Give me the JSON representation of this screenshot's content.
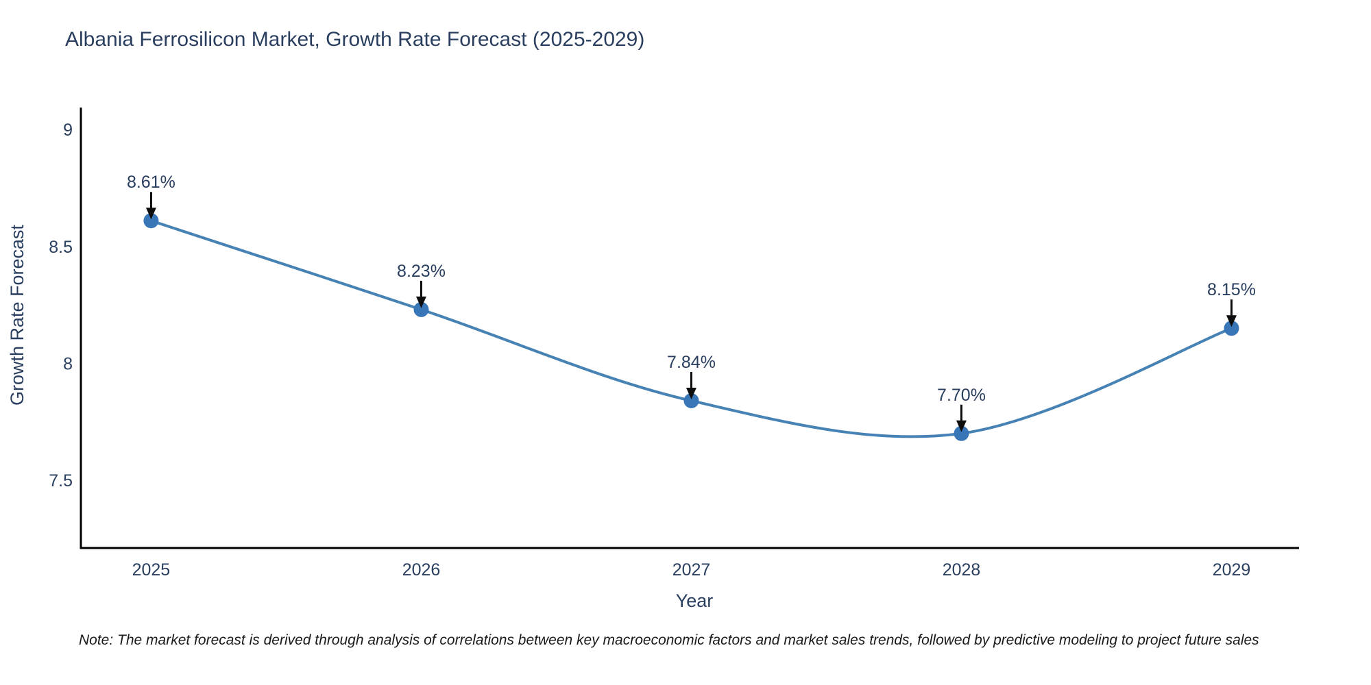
{
  "title": "Albania Ferrosilicon Market, Growth Rate Forecast (2025-2029)",
  "note": "Note: The market forecast is derived through analysis of correlations between key macroeconomic factors and market sales trends, followed by predictive modeling to project future sales",
  "chart_data": {
    "type": "line",
    "title": "Albania Ferrosilicon Market, Growth Rate Forecast (2025-2029)",
    "x": [
      2025,
      2026,
      2027,
      2028,
      2029
    ],
    "xtick_labels": [
      "2025",
      "2026",
      "2027",
      "2028",
      "2029"
    ],
    "series": [
      {
        "name": "Growth Rate Forecast",
        "values": [
          8.61,
          8.23,
          7.84,
          7.7,
          8.15
        ]
      }
    ],
    "data_labels": [
      "8.61%",
      "8.23%",
      "7.84%",
      "7.70%",
      "8.15%"
    ],
    "xlabel": "Year",
    "ylabel": "Growth Rate Forecast",
    "ytick_labels": [
      "7.5",
      "8",
      "8.5",
      "9"
    ],
    "ytick_values": [
      7.5,
      8,
      8.5,
      9
    ],
    "ylim": [
      7.21,
      9.1
    ],
    "xlim": [
      2024.74,
      2029.25
    ],
    "grid": false,
    "legend_position": "none",
    "line_shape": "spline",
    "marker": "circle",
    "annotation_arrows": true,
    "colors": {
      "line": "#4682b4",
      "marker": "#3876b8",
      "text": "#2a3f5f",
      "axis": "#000000",
      "arrow": "#0d0d0d",
      "note_text": "#1a1a1a",
      "background": "#ffffff"
    }
  }
}
